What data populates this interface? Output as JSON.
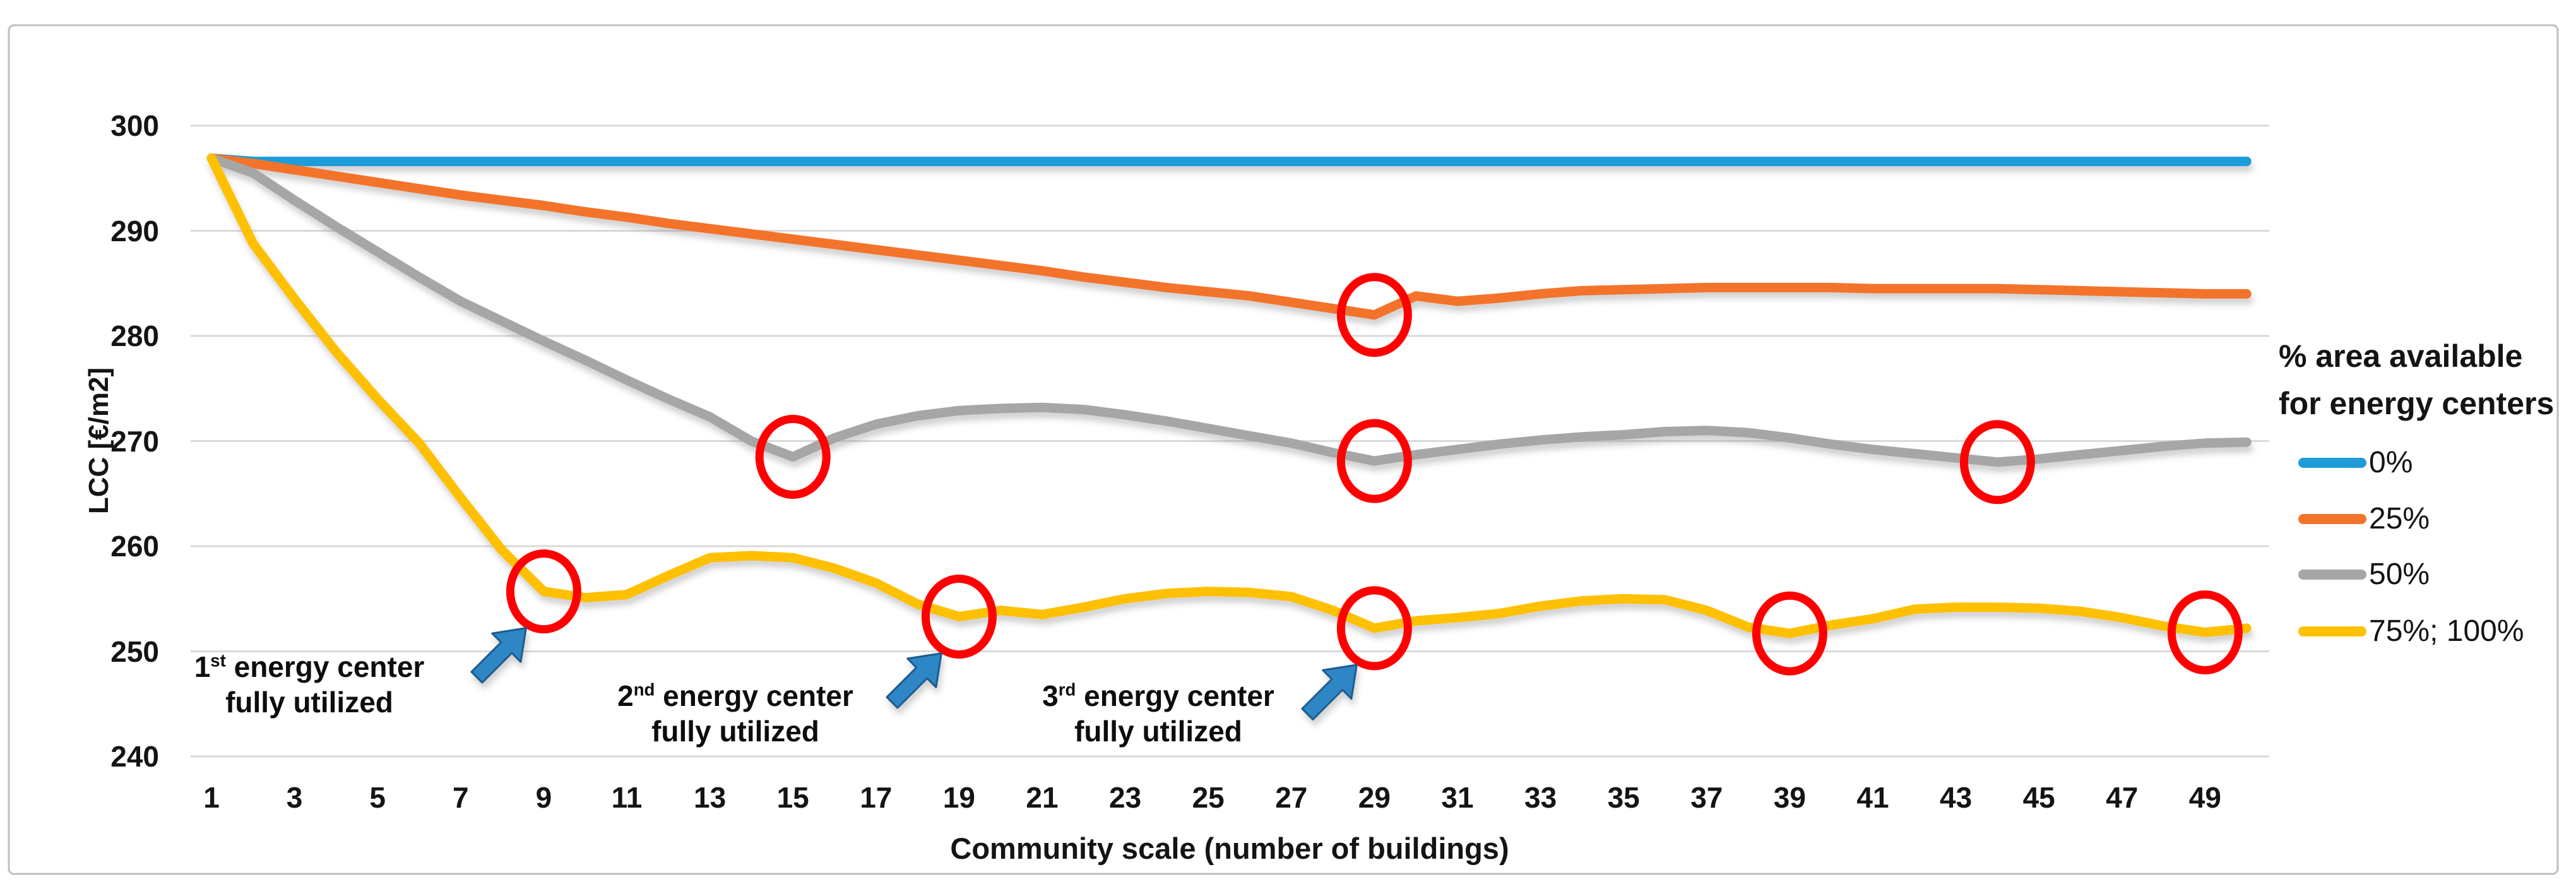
{
  "palette": {
    "red_highlight": "#FE0000",
    "arrow_blue_fill": "#2F86C4",
    "arrow_blue_edge": "#1C5B8F",
    "gridline": "#D9D9D9",
    "figure_border": "#BFBFBF",
    "text": "#141414"
  },
  "chart_data": {
    "type": "line",
    "title": "",
    "xlabel": "Community scale (number of buildings)",
    "ylabel": "LCC [€/m2]",
    "ylim": [
      240,
      300
    ],
    "y_ticks": [
      240,
      250,
      260,
      270,
      280,
      290,
      300
    ],
    "x_tick_labels": [
      1,
      3,
      5,
      7,
      9,
      11,
      13,
      15,
      17,
      19,
      21,
      23,
      25,
      27,
      29,
      31,
      33,
      35,
      37,
      39,
      41,
      43,
      45,
      47,
      49
    ],
    "x_range": [
      1,
      50
    ],
    "grid": "horizontal",
    "legend_position": "right",
    "legend_title": [
      "% area available",
      "for energy centers"
    ],
    "series": [
      {
        "name": "0%",
        "color": "#1E9CD8",
        "values": [
          296.9,
          296.6,
          296.6,
          296.6,
          296.6,
          296.6,
          296.6,
          296.6,
          296.6,
          296.6,
          296.6,
          296.6,
          296.6,
          296.6,
          296.6,
          296.6,
          296.6,
          296.6,
          296.6,
          296.6,
          296.6,
          296.6,
          296.6,
          296.6,
          296.6,
          296.6,
          296.6,
          296.6,
          296.6,
          296.6,
          296.6,
          296.6,
          296.6,
          296.6,
          296.6,
          296.6,
          296.6,
          296.6,
          296.6,
          296.6,
          296.6,
          296.6,
          296.6,
          296.6,
          296.6,
          296.6,
          296.6,
          296.6,
          296.6,
          296.6
        ]
      },
      {
        "name": "25%",
        "color": "#F4732A",
        "values": [
          296.9,
          296.4,
          295.8,
          295.2,
          294.6,
          294.0,
          293.4,
          292.9,
          292.4,
          291.8,
          291.3,
          290.7,
          290.2,
          289.7,
          289.2,
          288.7,
          288.2,
          287.7,
          287.2,
          286.7,
          286.2,
          285.6,
          285.1,
          284.6,
          284.2,
          283.8,
          283.2,
          282.6,
          282.0,
          283.8,
          283.3,
          283.6,
          284.0,
          284.3,
          284.4,
          284.5,
          284.6,
          284.6,
          284.6,
          284.6,
          284.5,
          284.5,
          284.5,
          284.5,
          284.4,
          284.3,
          284.2,
          284.1,
          284.0,
          284.0
        ]
      },
      {
        "name": "50%",
        "color": "#A6A6A6",
        "values": [
          296.9,
          295.5,
          292.9,
          290.4,
          288.0,
          285.6,
          283.3,
          281.4,
          279.5,
          277.7,
          275.8,
          274.0,
          272.3,
          270.0,
          268.5,
          270.3,
          271.6,
          272.4,
          272.9,
          273.1,
          273.2,
          273.0,
          272.5,
          271.9,
          271.2,
          270.5,
          269.8,
          268.9,
          268.1,
          268.7,
          269.2,
          269.7,
          270.1,
          270.4,
          270.6,
          270.9,
          271.0,
          270.8,
          270.3,
          269.7,
          269.2,
          268.8,
          268.4,
          268.0,
          268.3,
          268.7,
          269.1,
          269.5,
          269.8,
          269.9
        ]
      },
      {
        "name": "75%; 100%",
        "color": "#FFC000",
        "values": [
          296.9,
          288.8,
          283.5,
          278.5,
          274.0,
          269.8,
          264.6,
          259.6,
          255.7,
          255.1,
          255.4,
          257.2,
          258.9,
          259.1,
          258.9,
          257.9,
          256.5,
          254.5,
          253.3,
          253.9,
          253.5,
          254.2,
          255.0,
          255.5,
          255.7,
          255.6,
          255.2,
          253.9,
          252.2,
          252.9,
          253.2,
          253.6,
          254.3,
          254.8,
          255.0,
          254.9,
          253.9,
          252.3,
          251.7,
          252.5,
          253.1,
          254.0,
          254.2,
          254.2,
          254.1,
          253.8,
          253.2,
          252.4,
          251.8,
          252.2
        ]
      }
    ],
    "highlighted_points": [
      {
        "series": "75%; 100%",
        "x": 9,
        "y": 255.7
      },
      {
        "series": "50%",
        "x": 15,
        "y": 268.5
      },
      {
        "series": "75%; 100%",
        "x": 19,
        "y": 253.3
      },
      {
        "series": "25%",
        "x": 29,
        "y": 282.0
      },
      {
        "series": "50%",
        "x": 29,
        "y": 268.1
      },
      {
        "series": "75%; 100%",
        "x": 29,
        "y": 252.2
      },
      {
        "series": "75%; 100%",
        "x": 39,
        "y": 251.7
      },
      {
        "series": "50%",
        "x": 44,
        "y": 268.0
      },
      {
        "series": "75%; 100%",
        "x": 49,
        "y": 251.8
      }
    ]
  },
  "annotations": [
    {
      "num": "1",
      "sup": "st",
      "rest": " energy center",
      "line2": "fully utilized",
      "points_to": {
        "x": 9,
        "y": 255.7
      }
    },
    {
      "num": "2",
      "sup": "nd",
      "rest": " energy center",
      "line2": "fully utilized",
      "points_to": {
        "x": 19,
        "y": 253.3
      }
    },
    {
      "num": "3",
      "sup": "rd",
      "rest": " energy center",
      "line2": "fully utilized",
      "points_to": {
        "x": 29,
        "y": 252.2
      }
    }
  ]
}
